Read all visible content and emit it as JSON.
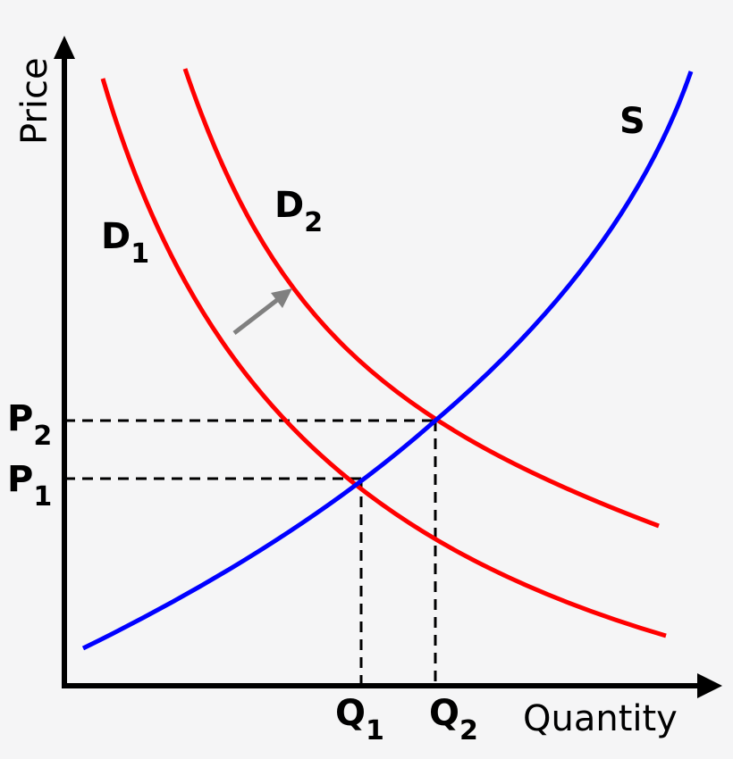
{
  "axes": {
    "y_label": "Price",
    "x_label": "Quantity"
  },
  "curves": {
    "supply": {
      "main": "S"
    },
    "demand_1": {
      "main": "D",
      "sub": "1"
    },
    "demand_2": {
      "main": "D",
      "sub": "2"
    }
  },
  "markers": {
    "p1": {
      "main": "P",
      "sub": "1"
    },
    "p2": {
      "main": "P",
      "sub": "2"
    },
    "q1": {
      "main": "Q",
      "sub": "1"
    },
    "q2": {
      "main": "Q",
      "sub": "2"
    }
  }
}
